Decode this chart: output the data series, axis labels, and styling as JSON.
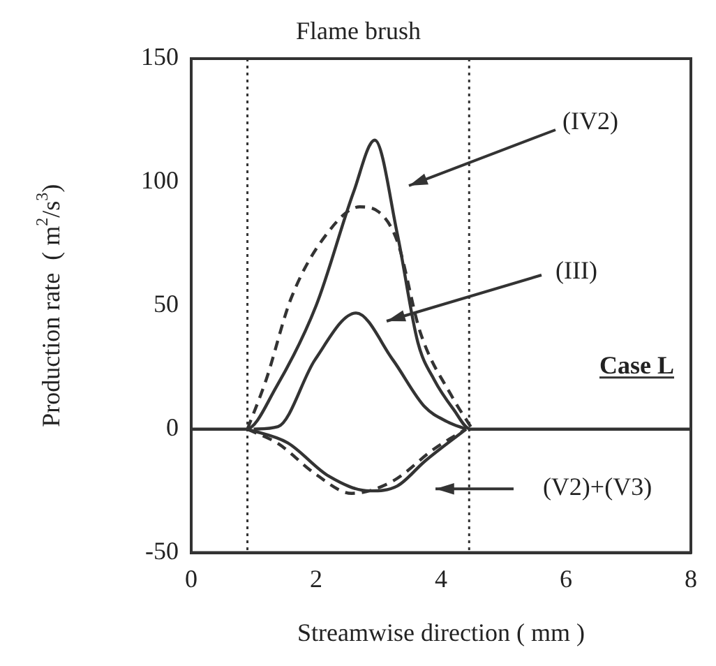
{
  "chart_data": {
    "type": "line",
    "xlabel": "Streamwise direction ( mm )",
    "ylabel": "Production rate  ( m$^{2}$/s$^{3}$)",
    "xlim": [
      0,
      8
    ],
    "ylim": [
      -50,
      150
    ],
    "xticks": [
      0,
      2,
      4,
      6,
      8
    ],
    "yticks": [
      -50,
      0,
      50,
      100,
      150
    ],
    "grid": false,
    "legend": false,
    "marker": "none",
    "series": [
      {
        "color": "#333333",
        "line_style": "solid",
        "x": [
          0,
          0.88,
          1.36,
          2.0,
          2.6,
          2.94,
          3.3,
          3.63,
          3.89,
          4.2,
          4.47,
          8
        ],
        "values": [
          0,
          0,
          17,
          50,
          96,
          117,
          79,
          35,
          20,
          8,
          0,
          0
        ]
      },
      {
        "color": "#333333",
        "line_style": "dashed",
        "x": [
          0.9,
          1.2,
          1.6,
          2.2,
          2.7,
          3.0,
          3.3,
          3.67,
          4.18,
          4.5
        ],
        "values": [
          0,
          20,
          53,
          80,
          90,
          88,
          76,
          39,
          13,
          0
        ]
      },
      {
        "color": "#333333",
        "line_style": "solid",
        "x": [
          1.0,
          1.39,
          1.98,
          2.64,
          3.23,
          3.74,
          4.1,
          4.4
        ],
        "values": [
          0,
          1,
          28,
          47,
          28,
          9,
          3,
          0
        ]
      },
      {
        "color": "#333333",
        "line_style": "solid",
        "x": [
          0.9,
          1.54,
          2.2,
          2.86,
          3.3,
          3.74,
          4.4
        ],
        "values": [
          0,
          -5.5,
          -19,
          -25,
          -23,
          -13,
          0
        ]
      },
      {
        "color": "#333333",
        "line_style": "dashed",
        "x": [
          0.9,
          1.4,
          1.98,
          2.57,
          3.23,
          3.89,
          4.4
        ],
        "values": [
          0,
          -6,
          -18,
          -26,
          -21,
          -8,
          0
        ]
      }
    ],
    "ref_lines": [
      {
        "axis": "x",
        "value": 0.9,
        "line_style": "dotted",
        "color": "#333333"
      },
      {
        "axis": "x",
        "value": 4.45,
        "line_style": "dotted",
        "color": "#333333"
      }
    ],
    "annotations": [
      "Flame brush",
      "Case L",
      "(IV2)",
      "(III)",
      "(V2)+(V3)"
    ]
  }
}
